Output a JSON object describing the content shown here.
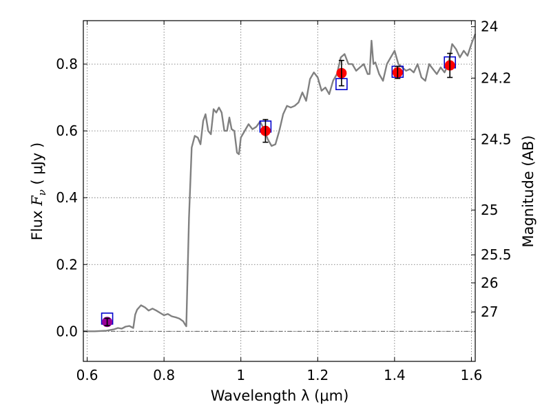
{
  "chart_data": {
    "type": "line",
    "xlabel": "Wavelength  λ (μm)",
    "ylabel_text": "Flux  ",
    "ylabel_math_main": "F",
    "ylabel_math_sub": "ν",
    "ylabel_units": " ( μJy )",
    "ylabel_right": "Magnitude (AB)",
    "xlim": [
      0.59,
      1.61
    ],
    "ylim": [
      -0.09,
      0.93
    ],
    "grid": true,
    "x_ticks": [
      0.6,
      0.8,
      1.0,
      1.2,
      1.4,
      1.6
    ],
    "x_tick_labels": [
      "0.6",
      "0.8",
      "1",
      "1.2",
      "1.4",
      "1.6"
    ],
    "y_ticks": [
      0.0,
      0.2,
      0.4,
      0.6,
      0.8
    ],
    "y_tick_labels": [
      "0.0",
      "0.2",
      "0.4",
      "0.6",
      "0.8"
    ],
    "right_ticks": [
      {
        "label": "24",
        "flux": 0.912
      },
      {
        "label": "24.2",
        "flux": 0.758
      },
      {
        "label": "24.5",
        "flux": 0.575
      },
      {
        "label": "25",
        "flux": 0.363
      },
      {
        "label": "25.5",
        "flux": 0.229
      },
      {
        "label": "26",
        "flux": 0.145
      },
      {
        "label": "27",
        "flux": 0.058
      }
    ],
    "zero_line": 0.0,
    "series": [
      {
        "kind": "line",
        "color": "#808080",
        "x": [
          0.59,
          0.62,
          0.65,
          0.67,
          0.68,
          0.69,
          0.7,
          0.71,
          0.72,
          0.725,
          0.73,
          0.74,
          0.75,
          0.76,
          0.77,
          0.78,
          0.79,
          0.8,
          0.81,
          0.82,
          0.83,
          0.84,
          0.85,
          0.855,
          0.858,
          0.865,
          0.872,
          0.88,
          0.888,
          0.895,
          0.902,
          0.908,
          0.915,
          0.922,
          0.929,
          0.936,
          0.943,
          0.95,
          0.957,
          0.964,
          0.97,
          0.976,
          0.983,
          0.99,
          0.995,
          1.0,
          1.01,
          1.02,
          1.03,
          1.04,
          1.05,
          1.06,
          1.07,
          1.08,
          1.09,
          1.1,
          1.11,
          1.12,
          1.13,
          1.14,
          1.15,
          1.16,
          1.17,
          1.18,
          1.19,
          1.2,
          1.21,
          1.22,
          1.23,
          1.24,
          1.25,
          1.26,
          1.27,
          1.28,
          1.29,
          1.3,
          1.31,
          1.32,
          1.33,
          1.335,
          1.34,
          1.345,
          1.35,
          1.36,
          1.37,
          1.38,
          1.39,
          1.4,
          1.41,
          1.42,
          1.43,
          1.44,
          1.45,
          1.46,
          1.47,
          1.48,
          1.49,
          1.5,
          1.51,
          1.52,
          1.53,
          1.54,
          1.55,
          1.56,
          1.57,
          1.58,
          1.59,
          1.6,
          1.61
        ],
        "y": [
          0.0,
          0.0,
          0.002,
          0.006,
          0.01,
          0.008,
          0.014,
          0.016,
          0.01,
          0.05,
          0.065,
          0.078,
          0.072,
          0.062,
          0.068,
          0.062,
          0.055,
          0.048,
          0.052,
          0.045,
          0.042,
          0.038,
          0.03,
          0.02,
          0.015,
          0.34,
          0.55,
          0.585,
          0.58,
          0.56,
          0.63,
          0.65,
          0.6,
          0.59,
          0.665,
          0.655,
          0.67,
          0.655,
          0.6,
          0.6,
          0.64,
          0.605,
          0.6,
          0.535,
          0.53,
          0.58,
          0.6,
          0.62,
          0.605,
          0.612,
          0.628,
          0.605,
          0.575,
          0.555,
          0.56,
          0.6,
          0.65,
          0.675,
          0.67,
          0.675,
          0.685,
          0.715,
          0.69,
          0.755,
          0.775,
          0.76,
          0.72,
          0.73,
          0.71,
          0.75,
          0.77,
          0.82,
          0.83,
          0.8,
          0.8,
          0.78,
          0.79,
          0.8,
          0.77,
          0.77,
          0.87,
          0.8,
          0.805,
          0.77,
          0.75,
          0.8,
          0.82,
          0.84,
          0.8,
          0.79,
          0.78,
          0.785,
          0.775,
          0.8,
          0.76,
          0.75,
          0.8,
          0.785,
          0.77,
          0.79,
          0.775,
          0.8,
          0.86,
          0.845,
          0.82,
          0.84,
          0.825,
          0.86,
          0.89
        ]
      },
      {
        "kind": "squares",
        "color": "#0000cc",
        "x": [
          0.652,
          1.064,
          1.262,
          1.408,
          1.544
        ],
        "y": [
          0.038,
          0.613,
          0.74,
          0.777,
          0.805
        ]
      },
      {
        "kind": "points",
        "color": "#ff0000",
        "x": [
          1.064,
          1.262,
          1.408,
          1.544
        ],
        "y": [
          0.6,
          0.773,
          0.775,
          0.796
        ],
        "yerr": [
          0.034,
          0.038,
          0.018,
          0.036
        ]
      },
      {
        "kind": "points",
        "color": "#990099",
        "x": [
          0.652
        ],
        "y": [
          0.028
        ],
        "yerr": [
          0.011
        ]
      }
    ]
  }
}
